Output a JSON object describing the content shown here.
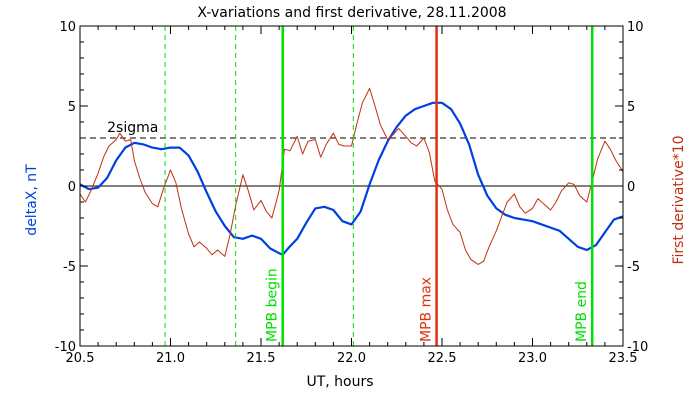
{
  "chart_data": {
    "type": "line",
    "title": "X-variations and first derivative, 28.11.2008",
    "xlabel": "UT, hours",
    "ylabel_left": "deltaX, nT",
    "ylabel_right": "First derivative*10",
    "xlim": [
      20.5,
      23.5
    ],
    "ylim": [
      -10,
      10
    ],
    "x_ticks": [
      "20.5",
      "21.0",
      "21.5",
      "22.0",
      "22.5",
      "23.0",
      "23.5"
    ],
    "x_tick_values": [
      20.5,
      21.0,
      21.5,
      22.0,
      22.5,
      23.0,
      23.5
    ],
    "y_ticks": [
      "10",
      "5",
      "0",
      "-5",
      "-10"
    ],
    "y_tick_values": [
      10,
      5,
      0,
      -5,
      -10
    ],
    "colors": {
      "deltaX": "#0040e0",
      "derivative": "#c03010",
      "mpb_edges": "#00e000",
      "mpb_max": "#e03010",
      "sigma": "#000000"
    },
    "series": [
      {
        "key": "deltaX",
        "x": [
          20.5,
          20.55,
          20.6,
          20.65,
          20.7,
          20.75,
          20.8,
          20.85,
          20.9,
          20.95,
          21.0,
          21.05,
          21.1,
          21.15,
          21.2,
          21.25,
          21.3,
          21.35,
          21.4,
          21.45,
          21.5,
          21.55,
          21.6,
          21.62
        ],
        "values": [
          0.1,
          -0.2,
          -0.1,
          0.5,
          1.6,
          2.4,
          2.7,
          2.6,
          2.4,
          2.3,
          2.4,
          2.4,
          1.9,
          0.9,
          -0.4,
          -1.6,
          -2.5,
          -3.2,
          -3.3,
          -3.1,
          -3.3,
          -3.9,
          -4.2,
          -4.3
        ]
      },
      {
        "key": "deltaX",
        "x": [
          21.62,
          21.65,
          21.7,
          21.75,
          21.8,
          21.85,
          21.9,
          21.95,
          22.0,
          22.05,
          22.1,
          22.15,
          22.2,
          22.25,
          22.3,
          22.35,
          22.4,
          22.45,
          22.5,
          22.55,
          22.6,
          22.65,
          22.7,
          22.75,
          22.8,
          22.85,
          22.9,
          22.95,
          23.0,
          23.05,
          23.1,
          23.15,
          23.2,
          23.25,
          23.3,
          23.35,
          23.4,
          23.45,
          23.5
        ],
        "values": [
          -4.3,
          -3.9,
          -3.3,
          -2.3,
          -1.4,
          -1.3,
          -1.5,
          -2.2,
          -2.4,
          -1.6,
          0.1,
          1.6,
          2.8,
          3.7,
          4.4,
          4.8,
          5.0,
          5.2,
          5.2,
          4.8,
          3.9,
          2.6,
          0.7,
          -0.6,
          -1.4,
          -1.8,
          -2.0,
          -2.1,
          -2.2,
          -2.4,
          -2.6,
          -2.8,
          -3.3,
          -3.8,
          -4.0,
          -3.7,
          -2.9,
          -2.1,
          -1.9
        ]
      },
      {
        "key": "derivative",
        "x": [
          20.5,
          20.53,
          20.56,
          20.6,
          20.63,
          20.66,
          20.7,
          20.72,
          20.75,
          20.78,
          20.8,
          20.83,
          20.86,
          20.9,
          20.93,
          20.96,
          21.0,
          21.03,
          21.06,
          21.1,
          21.13,
          21.16,
          21.2,
          21.23,
          21.26,
          21.3,
          21.33,
          21.36,
          21.4,
          21.43,
          21.46,
          21.5,
          21.53,
          21.56,
          21.6,
          21.63,
          21.66,
          21.7,
          21.73,
          21.76,
          21.8,
          21.83,
          21.86,
          21.9,
          21.93,
          21.96,
          22.0,
          22.03,
          22.06,
          22.1,
          22.13,
          22.16,
          22.2,
          22.23,
          22.26,
          22.3,
          22.33,
          22.36,
          22.4,
          22.43,
          22.46,
          22.5,
          22.53,
          22.56,
          22.6,
          22.63,
          22.66,
          22.7,
          22.73,
          22.76,
          22.8,
          22.83,
          22.86,
          22.9,
          22.93,
          22.96,
          23.0,
          23.03,
          23.06,
          23.1,
          23.13,
          23.16,
          23.2,
          23.23,
          23.26,
          23.3,
          23.33,
          23.36,
          23.4,
          23.43,
          23.46,
          23.5
        ],
        "values": [
          -0.5,
          -1.0,
          -0.3,
          0.8,
          1.8,
          2.5,
          2.9,
          3.3,
          2.8,
          2.9,
          1.6,
          0.5,
          -0.4,
          -1.1,
          -1.3,
          -0.2,
          1.0,
          0.2,
          -1.4,
          -3.0,
          -3.8,
          -3.5,
          -3.9,
          -4.3,
          -4.0,
          -4.4,
          -3.0,
          -1.2,
          0.7,
          -0.3,
          -1.5,
          -0.9,
          -1.6,
          -2.0,
          -0.3,
          2.3,
          2.2,
          3.1,
          2.0,
          2.8,
          2.9,
          1.8,
          2.6,
          3.3,
          2.6,
          2.5,
          2.5,
          3.9,
          5.2,
          6.1,
          5.0,
          3.8,
          2.9,
          3.2,
          3.6,
          3.1,
          2.7,
          2.5,
          3.0,
          2.1,
          0.3,
          -0.2,
          -1.5,
          -2.4,
          -2.9,
          -4.0,
          -4.6,
          -4.9,
          -4.7,
          -3.8,
          -2.8,
          -1.9,
          -1.0,
          -0.5,
          -1.3,
          -1.7,
          -1.4,
          -0.8,
          -1.1,
          -1.5,
          -1.0,
          -0.3,
          0.2,
          0.1,
          -0.6,
          -1.0,
          0.3,
          1.7,
          2.8,
          2.3,
          1.6,
          0.9
        ]
      }
    ],
    "hlines": [
      {
        "y": 3.0,
        "style": "dashed",
        "label": "2sigma"
      },
      {
        "y": 0,
        "style": "solid",
        "label": ""
      }
    ],
    "vlines": [
      {
        "x": 20.97,
        "style": "dashed",
        "kind": "minor",
        "label": ""
      },
      {
        "x": 21.36,
        "style": "dashed",
        "kind": "minor",
        "label": ""
      },
      {
        "x": 21.62,
        "style": "solid",
        "kind": "mpb_edge",
        "label": "MPB begin"
      },
      {
        "x": 22.01,
        "style": "dashed",
        "kind": "minor",
        "label": ""
      },
      {
        "x": 22.47,
        "style": "solid",
        "kind": "mpb_max",
        "label": "MPB max"
      },
      {
        "x": 23.33,
        "style": "solid",
        "kind": "mpb_edge",
        "label": "MPB end"
      }
    ]
  }
}
